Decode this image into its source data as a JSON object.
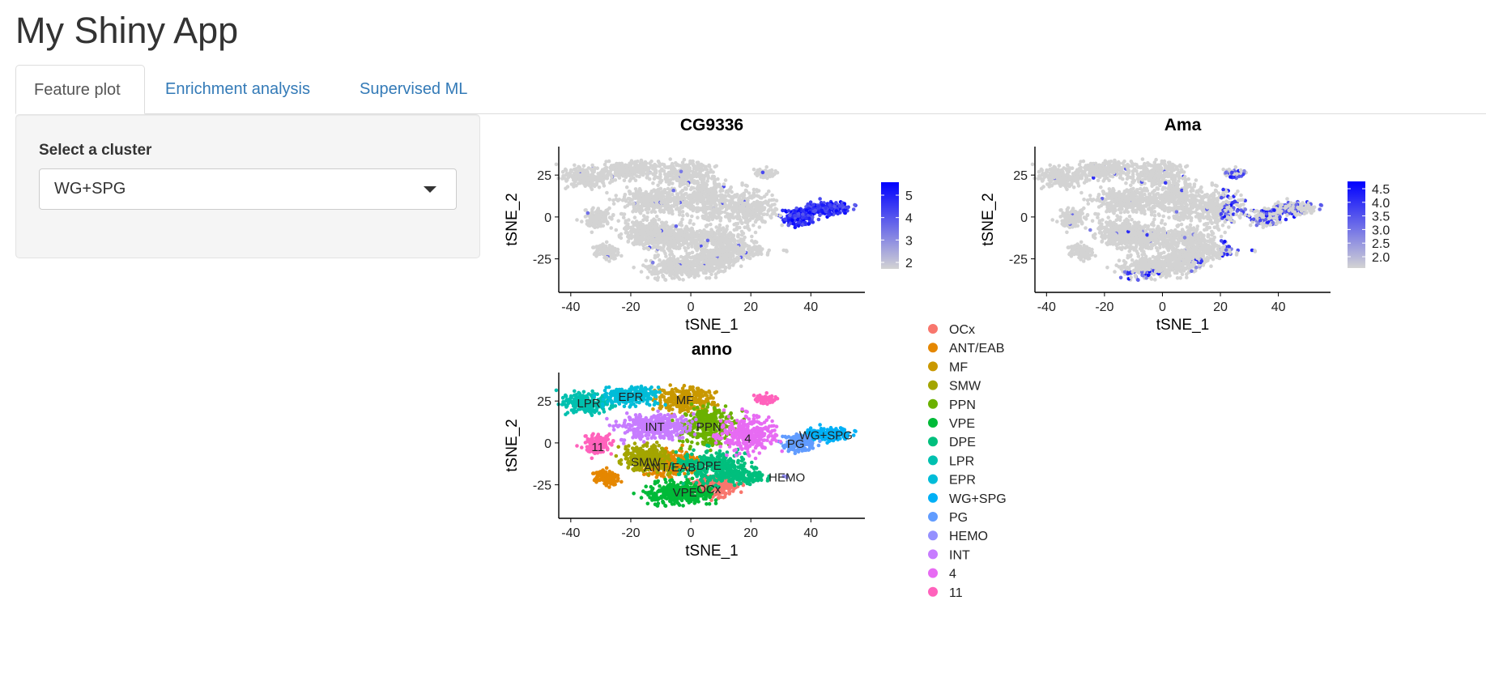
{
  "app": {
    "title": "My Shiny App"
  },
  "tabs": [
    {
      "label": "Feature plot",
      "active": true
    },
    {
      "label": "Enrichment analysis",
      "active": false
    },
    {
      "label": "Supervised ML",
      "active": false
    }
  ],
  "sidebar": {
    "select_label": "Select a cluster",
    "select_value": "WG+SPG"
  },
  "colors": {
    "link": "#337ab7",
    "feature_low": "#d3d3d3",
    "feature_high": "#0000ff"
  },
  "chart_data": [
    {
      "type": "scatter",
      "title": "CG9336",
      "xlabel": "tSNE_1",
      "ylabel": "tSNE_2",
      "x_ticks": [
        -40,
        -20,
        0,
        20,
        40
      ],
      "y_ticks": [
        -25,
        0,
        25
      ],
      "xlim": [
        -44,
        58
      ],
      "ylim": [
        -45,
        42
      ],
      "color_scale": {
        "low": "#d3d3d3",
        "high": "#0000ff",
        "ticks": [
          "5",
          "4",
          "3",
          "2"
        ]
      }
    },
    {
      "type": "scatter",
      "title": "Ama",
      "xlabel": "tSNE_1",
      "ylabel": "tSNE_2",
      "x_ticks": [
        -40,
        -20,
        0,
        20,
        40
      ],
      "y_ticks": [
        -25,
        0,
        25
      ],
      "xlim": [
        -44,
        58
      ],
      "ylim": [
        -45,
        42
      ],
      "color_scale": {
        "low": "#d3d3d3",
        "high": "#0000ff",
        "ticks": [
          "4.5",
          "4.0",
          "3.5",
          "3.0",
          "2.5",
          "2.0"
        ]
      }
    },
    {
      "type": "scatter",
      "title": "anno",
      "xlabel": "tSNE_1",
      "ylabel": "tSNE_2",
      "x_ticks": [
        -40,
        -20,
        0,
        20,
        40
      ],
      "y_ticks": [
        -25,
        0,
        25
      ],
      "xlim": [
        -44,
        58
      ],
      "ylim": [
        -45,
        42
      ],
      "legend_position": "right",
      "clusters": [
        {
          "name": "OCx",
          "color": "#F8766D",
          "label_at": [
            6,
            -27
          ]
        },
        {
          "name": "ANT/EAB",
          "color": "#E58700",
          "label_at": [
            -7,
            -14
          ]
        },
        {
          "name": "MF",
          "color": "#C99800",
          "label_at": [
            -2,
            26
          ]
        },
        {
          "name": "SMW",
          "color": "#A3A500",
          "label_at": [
            -15,
            -11
          ]
        },
        {
          "name": "PPN",
          "color": "#6BB100",
          "label_at": [
            6,
            10
          ]
        },
        {
          "name": "VPE",
          "color": "#00BA38",
          "label_at": [
            -2,
            -29
          ]
        },
        {
          "name": "DPE",
          "color": "#00BF7D",
          "label_at": [
            6,
            -13
          ]
        },
        {
          "name": "LPR",
          "color": "#00C0AF",
          "label_at": [
            -34,
            24
          ]
        },
        {
          "name": "EPR",
          "color": "#00BCD8",
          "label_at": [
            -20,
            28
          ]
        },
        {
          "name": "WG+SPG",
          "color": "#00B0F6",
          "label_at": [
            45,
            5
          ]
        },
        {
          "name": "PG",
          "color": "#619CFF",
          "label_at": [
            35,
            0
          ]
        },
        {
          "name": "HEMO",
          "color": "#9590FF",
          "label_at": [
            32,
            -20
          ]
        },
        {
          "name": "INT",
          "color": "#C77CFF",
          "label_at": [
            -12,
            10
          ]
        },
        {
          "name": "4",
          "color": "#E76BF3",
          "label_at": [
            19,
            3
          ]
        },
        {
          "name": "11",
          "color": "#FF62BC",
          "label_at": [
            -31,
            -2
          ]
        }
      ]
    }
  ]
}
